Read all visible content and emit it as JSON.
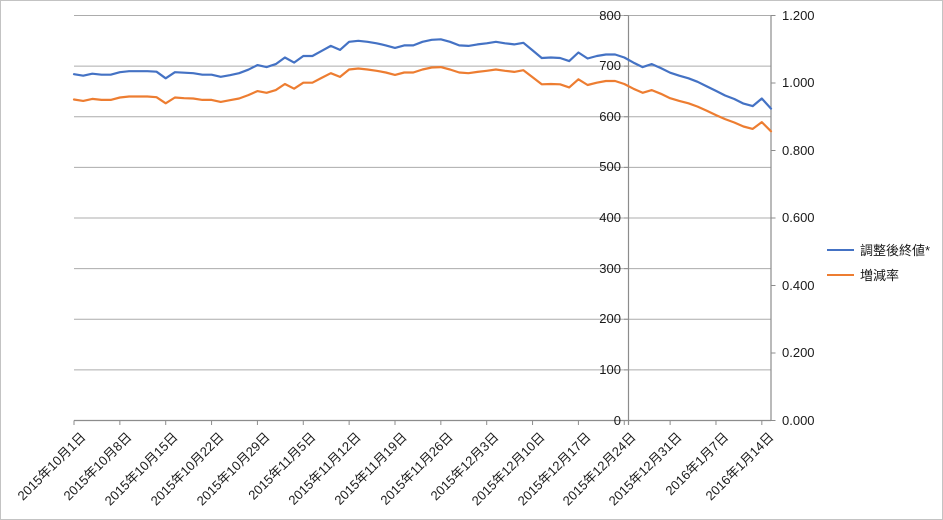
{
  "chart_data": {
    "type": "line",
    "title": "",
    "n_points": 77,
    "x_tick_labels": [
      "2015年10月1日",
      "2015年10月8日",
      "2015年10月15日",
      "2015年10月22日",
      "2015年10月29日",
      "2015年11月5日",
      "2015年11月12日",
      "2015年11月19日",
      "2015年11月26日",
      "2015年12月3日",
      "2015年12月10日",
      "2015年12月17日",
      "2015年12月24日",
      "2015年12月31日",
      "2016年1月7日",
      "2016年1月14日"
    ],
    "left_axis": {
      "min": 0,
      "max": 800,
      "step": 100,
      "tick_labels": [
        "800",
        "700",
        "600",
        "500",
        "400",
        "300",
        "200",
        "100",
        "0"
      ]
    },
    "right_axis": {
      "min": 0.0,
      "max": 1.2,
      "step": 0.2,
      "tick_labels": [
        "1.200",
        "1.000",
        "0.800",
        "0.600",
        "0.400",
        "0.200",
        "0.000"
      ]
    },
    "grid": true,
    "legend_position": "right",
    "series": [
      {
        "name": "調整後終値*",
        "axis": "left",
        "color": "#4472C4",
        "values": [
          684,
          681,
          685,
          683,
          683,
          688,
          690,
          690,
          690,
          689,
          676,
          688,
          687,
          686,
          683,
          683,
          679,
          682,
          686,
          693,
          702,
          698,
          704,
          717,
          707,
          720,
          720,
          730,
          740,
          732,
          748,
          750,
          748,
          745,
          741,
          736,
          741,
          741,
          748,
          752,
          753,
          748,
          741,
          740,
          743,
          745,
          748,
          745,
          743,
          746,
          731,
          716,
          717,
          716,
          710,
          727,
          715,
          720,
          723,
          723,
          717,
          707,
          698,
          704,
          696,
          687,
          681,
          676,
          669,
          660,
          651,
          642,
          635,
          626,
          621,
          636,
          616
        ]
      },
      {
        "name": "増減率",
        "axis": "right",
        "color": "#ED7D31",
        "values": [
          0.951,
          0.947,
          0.953,
          0.95,
          0.95,
          0.957,
          0.96,
          0.96,
          0.96,
          0.958,
          0.94,
          0.957,
          0.955,
          0.954,
          0.95,
          0.95,
          0.944,
          0.949,
          0.954,
          0.964,
          0.976,
          0.971,
          0.979,
          0.997,
          0.983,
          1.001,
          1.001,
          1.015,
          1.029,
          1.018,
          1.04,
          1.043,
          1.04,
          1.036,
          1.031,
          1.024,
          1.031,
          1.031,
          1.04,
          1.046,
          1.047,
          1.04,
          1.031,
          1.029,
          1.033,
          1.036,
          1.04,
          1.036,
          1.033,
          1.038,
          1.017,
          0.996,
          0.997,
          0.996,
          0.987,
          1.011,
          0.994,
          1.001,
          1.006,
          1.006,
          0.997,
          0.983,
          0.971,
          0.979,
          0.968,
          0.955,
          0.947,
          0.94,
          0.93,
          0.918,
          0.905,
          0.893,
          0.883,
          0.871,
          0.864,
          0.884,
          0.857
        ]
      }
    ],
    "colors": {
      "gridline": "#ACACAC",
      "axis_line": "#8C8C8C",
      "label_text": "#1A1A1A"
    }
  }
}
